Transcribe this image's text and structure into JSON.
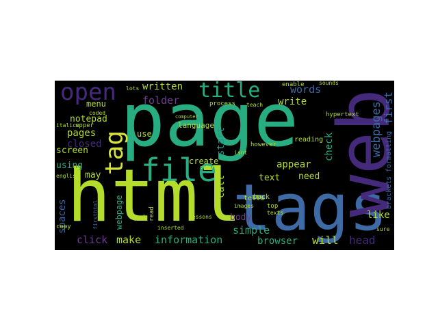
{
  "palette": {
    "green": "#b4dd2b",
    "teal": "#27ad81",
    "blue": "#3e6aa5",
    "purple": "#452a7b",
    "violet": "#6f3d8e",
    "cyan": "#2a938c",
    "yellow": "#d6e33a"
  },
  "words": [
    {
      "text": "page",
      "color": "teal"
    },
    {
      "text": "html",
      "color": "green"
    },
    {
      "text": "tags",
      "color": "blue"
    },
    {
      "text": "web",
      "color": "purple"
    },
    {
      "text": "file",
      "color": "teal"
    },
    {
      "text": "tag",
      "color": "yellow"
    },
    {
      "text": "open",
      "color": "purple"
    },
    {
      "text": "title",
      "color": "teal"
    },
    {
      "text": "written",
      "color": "green"
    },
    {
      "text": "folder",
      "color": "violet"
    },
    {
      "text": "words",
      "color": "blue"
    },
    {
      "text": "write",
      "color": "green"
    },
    {
      "text": "webpages",
      "color": "blue"
    },
    {
      "text": "first",
      "color": "blue"
    },
    {
      "text": "notepad",
      "color": "green"
    },
    {
      "text": "menu",
      "color": "green"
    },
    {
      "text": "pages",
      "color": "green"
    },
    {
      "text": "closed",
      "color": "purple"
    },
    {
      "text": "screen",
      "color": "green"
    },
    {
      "text": "using",
      "color": "teal"
    },
    {
      "text": "may",
      "color": "green"
    },
    {
      "text": "webpage",
      "color": "teal"
    },
    {
      "text": "spaces",
      "color": "blue"
    },
    {
      "text": "click",
      "color": "violet"
    },
    {
      "text": "make",
      "color": "green"
    },
    {
      "text": "information",
      "color": "teal"
    },
    {
      "text": "use",
      "color": "green"
    },
    {
      "text": "start",
      "color": "cyan"
    },
    {
      "text": "create",
      "color": "green"
    },
    {
      "text": "call",
      "color": "green"
    },
    {
      "text": "body",
      "color": "violet"
    },
    {
      "text": "simple",
      "color": "teal"
    },
    {
      "text": "browser",
      "color": "teal"
    },
    {
      "text": "will",
      "color": "green"
    },
    {
      "text": "head",
      "color": "purple"
    },
    {
      "text": "appear",
      "color": "green"
    },
    {
      "text": "text",
      "color": "green"
    },
    {
      "text": "need",
      "color": "green"
    },
    {
      "text": "check",
      "color": "teal"
    },
    {
      "text": "like",
      "color": "green"
    },
    {
      "text": "language",
      "color": "green"
    },
    {
      "text": "hypertext",
      "color": "green"
    },
    {
      "text": "reading",
      "color": "green"
    },
    {
      "text": "however",
      "color": "green"
    },
    {
      "text": "enable",
      "color": "green"
    },
    {
      "text": "sounds",
      "color": "green"
    },
    {
      "text": "process",
      "color": "green"
    },
    {
      "text": "teach",
      "color": "green"
    },
    {
      "text": "brackets",
      "color": "blue"
    },
    {
      "text": "formatting",
      "color": "blue"
    },
    {
      "text": "tells",
      "color": "green"
    },
    {
      "text": "back",
      "color": "green"
    },
    {
      "text": "top",
      "color": "green"
    },
    {
      "text": "texts",
      "color": "green"
    },
    {
      "text": "upper",
      "color": "green"
    },
    {
      "text": "italics",
      "color": "green"
    },
    {
      "text": "copy",
      "color": "green"
    },
    {
      "text": "put",
      "color": "green"
    },
    {
      "text": "read",
      "color": "green"
    },
    {
      "text": "sure",
      "color": "green"
    },
    {
      "text": "lessons",
      "color": "green"
    },
    {
      "text": "images",
      "color": "green"
    },
    {
      "text": "inserted",
      "color": "green"
    },
    {
      "text": "english",
      "color": "green"
    },
    {
      "text": "firsthtml",
      "color": "blue"
    },
    {
      "text": "coded",
      "color": "green"
    },
    {
      "text": "lots",
      "color": "green"
    },
    {
      "text": "computer",
      "color": "green"
    },
    {
      "text": "others",
      "color": "green"
    },
    {
      "text": "isnt",
      "color": "green"
    }
  ]
}
